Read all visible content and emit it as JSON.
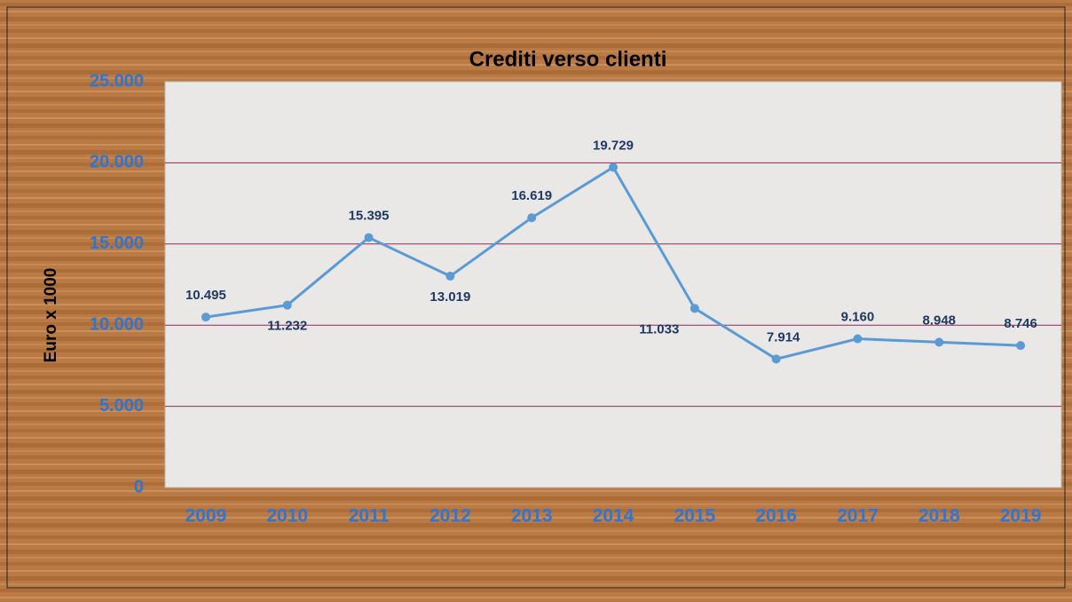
{
  "chart_data": {
    "type": "line",
    "title": "Crediti verso clienti",
    "y_label": "Euro x 1000",
    "categories": [
      "2009",
      "2010",
      "2011",
      "2012",
      "2013",
      "2014",
      "2015",
      "2016",
      "2017",
      "2018",
      "2019"
    ],
    "values": [
      10495,
      11232,
      15395,
      13019,
      16619,
      19729,
      11033,
      7914,
      9160,
      8948,
      8746
    ],
    "value_labels": [
      "10.495",
      "11.232",
      "15.395",
      "13.019",
      "16.619",
      "19.729",
      "11.033",
      "7.914",
      "9.160",
      "8.948",
      "8.746"
    ],
    "color": "#5b9bd5",
    "ylim": [
      0,
      25000
    ],
    "yticks": [
      0,
      {
        "value": 5000,
        "label": "5.000"
      },
      {
        "value": 10000,
        "label": "10.000"
      },
      {
        "value": 15000,
        "label": "15.000"
      },
      {
        "value": 20000,
        "label": "20.000"
      },
      {
        "value": 25000,
        "label": "25.000"
      }
    ],
    "grid": true
  }
}
